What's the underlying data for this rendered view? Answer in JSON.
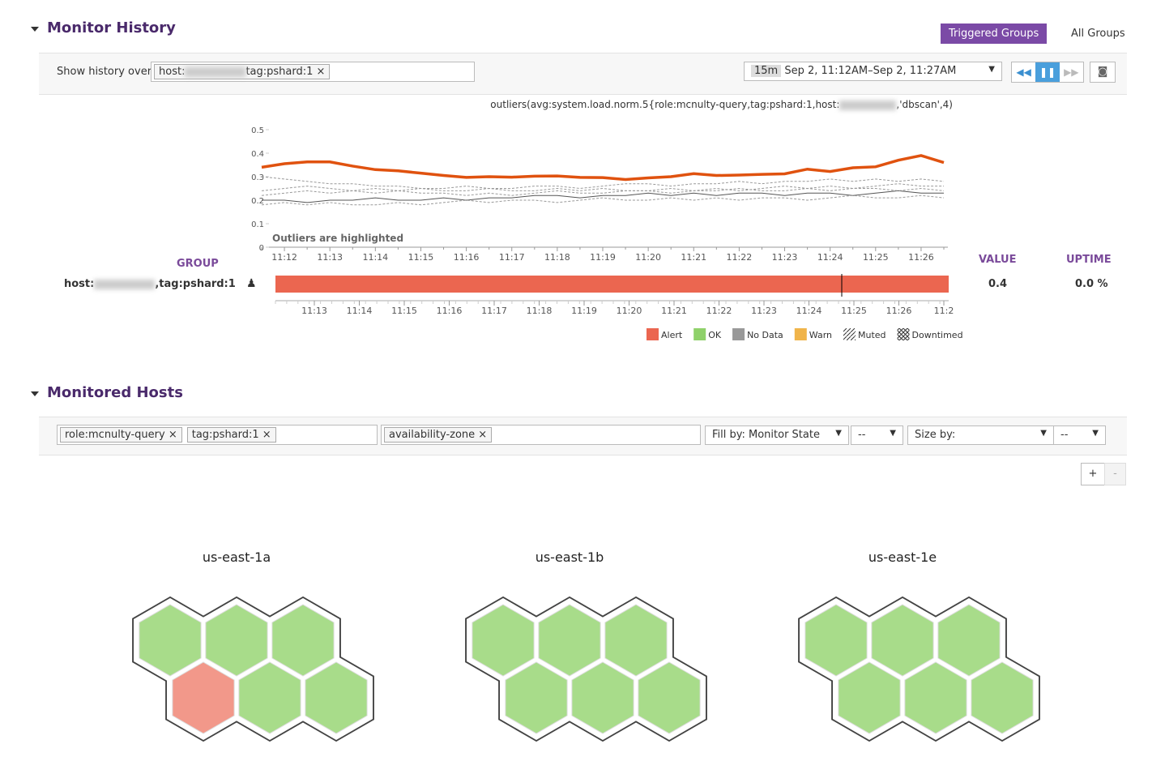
{
  "monitor_history": {
    "title": "Monitor History",
    "buttons": [
      "Triggered Groups",
      "All Groups"
    ],
    "show_history_label": "Show history over",
    "filter_host": "host:",
    "filter_tag": "tag:pshard:1",
    "range_short": "15m",
    "range_text": "Sep 2, 11:12AM–Sep 2, 11:27AM",
    "query_start": "outliers(avg:system.load.norm.5{role:mcnulty-query,tag:pshard:1,host:",
    "query_end": ",'dbscan',4)",
    "group_header": "GROUP",
    "value_header": "VALUE",
    "uptime_header": "UPTIME",
    "row_host": "host:",
    "row_tag": ",tag:pshard:1",
    "row_value": "0.4",
    "row_uptime": "0.0 %",
    "timeline_ticks": [
      "11:13",
      "11:14",
      "11:15",
      "11:16",
      "11:17",
      "11:18",
      "11:19",
      "11:20",
      "11:21",
      "11:22",
      "11:23",
      "11:24",
      "11:25",
      "11:26",
      "11:2"
    ],
    "status_legend": [
      {
        "name": "Alert",
        "color": "#eb6650"
      },
      {
        "name": "OK",
        "color": "#8fd16a"
      },
      {
        "name": "No Data",
        "color": "#999999"
      },
      {
        "name": "Warn",
        "color": "#f0b44a"
      },
      {
        "name": "Muted",
        "color": "none"
      },
      {
        "name": "Downtimed",
        "color": "none"
      }
    ]
  },
  "chart_data": {
    "type": "line",
    "annotation": "Outliers are highlighted",
    "categories": [
      null,
      "11:12",
      null,
      "11:13",
      null,
      "11:14",
      null,
      "11:15",
      null,
      "11:16",
      null,
      "11:17",
      null,
      "11:18",
      null,
      "11:19",
      null,
      "11:20",
      null,
      "11:21",
      null,
      "11:22",
      null,
      "11:23",
      null,
      "11:24",
      null,
      "11:25",
      null,
      "11:26",
      null
    ],
    "ylim": [
      0,
      0.5
    ],
    "yticks": [
      0,
      0.1,
      0.2,
      0.3,
      0.4,
      0.5
    ],
    "series": [
      {
        "color": "#999999",
        "dashed": true,
        "values": [
          0.3,
          0.29,
          0.28,
          0.27,
          0.27,
          0.26,
          0.26,
          0.25,
          0.25,
          0.26,
          0.25,
          0.25,
          0.26,
          0.26,
          0.25,
          0.26,
          0.27,
          0.27,
          0.26,
          0.27,
          0.27,
          0.28,
          0.27,
          0.28,
          0.28,
          0.29,
          0.28,
          0.29,
          0.28,
          0.29,
          0.28
        ]
      },
      {
        "color": "#999999",
        "dashed": true,
        "values": [
          0.22,
          0.23,
          0.24,
          0.23,
          0.24,
          0.23,
          0.24,
          0.25,
          0.24,
          0.24,
          0.25,
          0.24,
          0.24,
          0.25,
          0.24,
          0.25,
          0.24,
          0.24,
          0.25,
          0.24,
          0.25,
          0.24,
          0.25,
          0.26,
          0.25,
          0.26,
          0.25,
          0.26,
          0.27,
          0.26,
          0.26
        ]
      },
      {
        "color": "#555555",
        "dashed": false,
        "values": [
          0.2,
          0.2,
          0.19,
          0.2,
          0.2,
          0.21,
          0.2,
          0.2,
          0.21,
          0.2,
          0.21,
          0.21,
          0.22,
          0.22,
          0.21,
          0.22,
          0.22,
          0.23,
          0.22,
          0.23,
          0.22,
          0.23,
          0.23,
          0.22,
          0.23,
          0.23,
          0.22,
          0.23,
          0.24,
          0.23,
          0.23
        ]
      },
      {
        "color": "#999999",
        "dashed": true,
        "values": [
          0.18,
          0.19,
          0.18,
          0.19,
          0.18,
          0.18,
          0.19,
          0.18,
          0.19,
          0.2,
          0.19,
          0.2,
          0.2,
          0.19,
          0.2,
          0.21,
          0.2,
          0.2,
          0.21,
          0.2,
          0.21,
          0.2,
          0.21,
          0.21,
          0.2,
          0.21,
          0.22,
          0.21,
          0.21,
          0.22,
          0.21
        ]
      },
      {
        "color": "#999999",
        "dashed": true,
        "values": [
          0.24,
          0.25,
          0.26,
          0.25,
          0.24,
          0.25,
          0.24,
          0.23,
          0.23,
          0.22,
          0.23,
          0.22,
          0.23,
          0.24,
          0.23,
          0.23,
          0.24,
          0.24,
          0.23,
          0.24,
          0.24,
          0.25,
          0.24,
          0.24,
          0.25,
          0.24,
          0.25,
          0.25,
          0.24,
          0.25,
          0.24
        ]
      },
      {
        "color": "#e0520f",
        "dashed": false,
        "values": [
          0.34,
          0.355,
          0.363,
          0.363,
          0.345,
          0.33,
          0.325,
          0.315,
          0.305,
          0.297,
          0.3,
          0.298,
          0.302,
          0.303,
          0.297,
          0.296,
          0.288,
          0.295,
          0.3,
          0.313,
          0.305,
          0.307,
          0.31,
          0.312,
          0.332,
          0.322,
          0.338,
          0.342,
          0.37,
          0.39,
          0.36
        ]
      }
    ]
  },
  "monitored_hosts": {
    "title": "Monitored Hosts",
    "filter_chips": [
      "role:mcnulty-query",
      "tag:pshard:1"
    ],
    "group_chip": "availability-zone",
    "fill_by": "Fill by: Monitor State",
    "fill_dash": "--",
    "size_by": "Size by:",
    "size_dash": "--",
    "zoom_in": "+",
    "zoom_out": "-",
    "groups": [
      {
        "name": "us-east-1a",
        "colors": [
          "#a8dc8a",
          "#a8dc8a",
          "#a8dc8a",
          "#f2988a",
          "#a8dc8a",
          "#a8dc8a"
        ]
      },
      {
        "name": "us-east-1b",
        "colors": [
          "#a8dc8a",
          "#a8dc8a",
          "#a8dc8a",
          "#a8dc8a",
          "#a8dc8a",
          "#a8dc8a"
        ]
      },
      {
        "name": "us-east-1e",
        "colors": [
          "#a8dc8a",
          "#a8dc8a",
          "#a8dc8a",
          "#a8dc8a",
          "#a8dc8a",
          "#a8dc8a"
        ]
      }
    ]
  }
}
